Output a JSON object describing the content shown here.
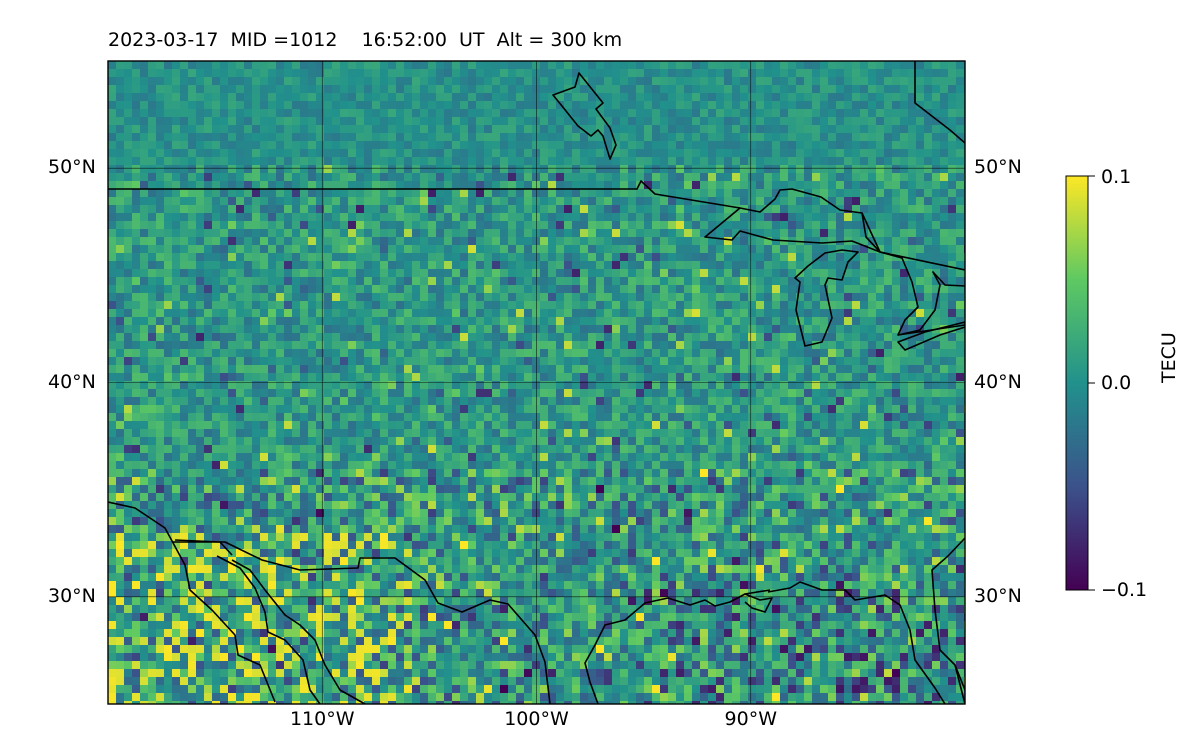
{
  "title": "2023-03-17  MID =1012    16:52:00  UT  Alt = 300 km",
  "map": {
    "lon_range": [
      -120,
      -80
    ],
    "lat_range": [
      25,
      55
    ],
    "lat_labels": [
      "50°N",
      "40°N",
      "30°N"
    ],
    "lat_values": [
      50,
      40,
      30
    ],
    "lon_labels": [
      "110°W",
      "100°W",
      "90°W"
    ],
    "lon_values": [
      -110,
      -100,
      -90
    ],
    "gridlines": true,
    "colormap": "viridis",
    "field": "TEC anomaly (dTEC) map, noisy cells with negative patches near the Gulf coast"
  },
  "colorbar": {
    "label": "TECU",
    "min": -0.1,
    "max": 0.1,
    "ticks": [
      "0.1",
      "0.0",
      "−0.1"
    ],
    "tick_values": [
      0.1,
      0.0,
      -0.1
    ],
    "colors": [
      "#440154",
      "#3b528b",
      "#21918c",
      "#5ec962",
      "#fde725"
    ]
  }
}
